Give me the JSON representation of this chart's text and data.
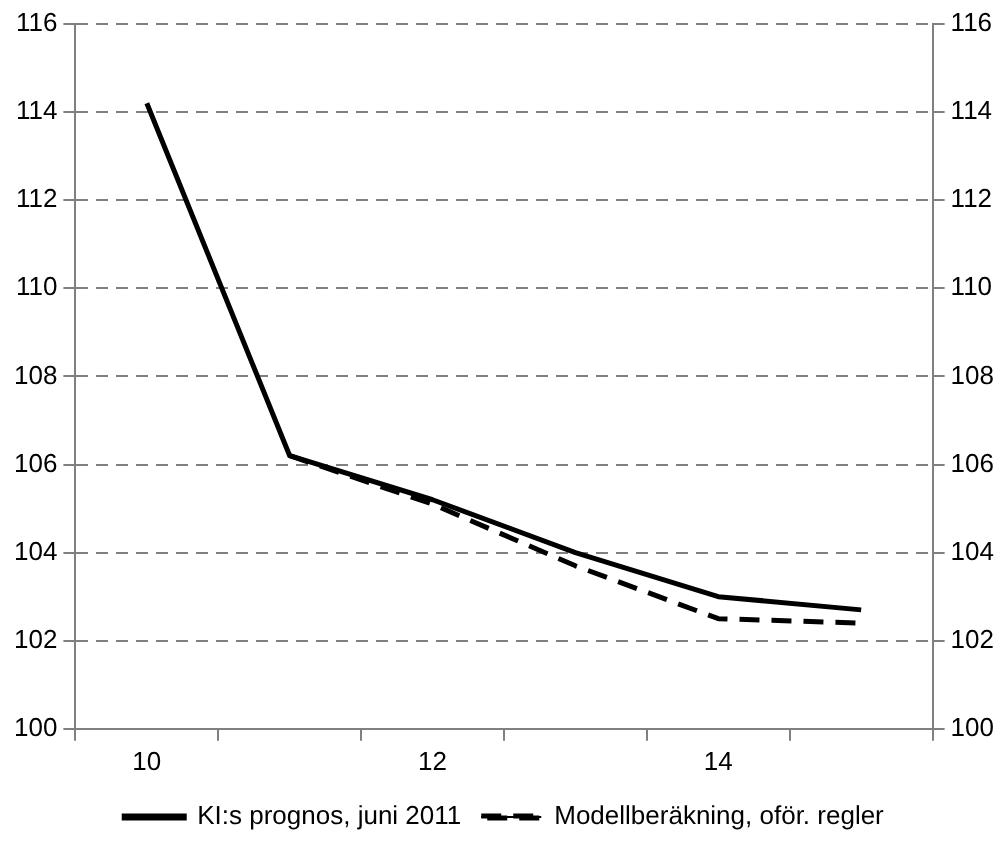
{
  "chart_data": {
    "type": "line",
    "categories": [
      "10",
      null,
      "12",
      null,
      "14",
      null
    ],
    "series": [
      {
        "name": "KI:s prognos, juni 2011",
        "color": "#000000",
        "line_style": "solid",
        "values": [
          114.2,
          106.2,
          105.2,
          104.0,
          103.0,
          102.7
        ]
      },
      {
        "name": "Modellberäkning, oför. regler",
        "color": "#000000",
        "line_style": "dashed",
        "values": [
          null,
          106.2,
          105.1,
          103.7,
          102.5,
          102.4
        ]
      }
    ],
    "ylim": [
      100,
      116
    ],
    "yticks": [
      100,
      102,
      104,
      106,
      108,
      110,
      112,
      114,
      116
    ],
    "y2lim": [
      100,
      116
    ],
    "y2ticks": [
      100,
      102,
      104,
      106,
      108,
      110,
      112,
      114,
      116
    ],
    "grid": "y",
    "legend": "bottom",
    "marker": "none"
  }
}
